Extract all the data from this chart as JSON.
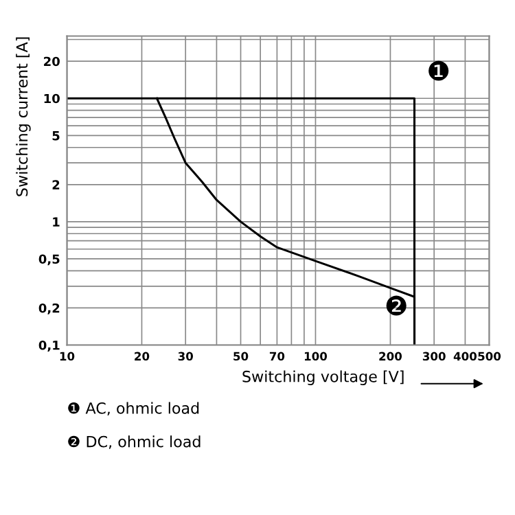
{
  "chart_data": {
    "type": "line",
    "xlabel": "Switching voltage [V]",
    "ylabel": "Switching current [A]",
    "log": "xy",
    "grid": true,
    "marker": "none",
    "line_style": "solid",
    "xlim": [
      10,
      500
    ],
    "ylim": [
      0.1,
      32
    ],
    "xticks": [
      10,
      20,
      30,
      50,
      70,
      100,
      200,
      300,
      400,
      500
    ],
    "yticks": [
      {
        "value": 0.1,
        "label": "0,1"
      },
      {
        "value": 0.2,
        "label": "0,2"
      },
      {
        "value": 0.5,
        "label": "0,5"
      },
      1,
      2,
      5,
      10,
      20
    ],
    "series": [
      {
        "color": "#000000",
        "x": [
          10,
          250,
          250
        ],
        "values": [
          10,
          10,
          0.1
        ]
      },
      {
        "color": "#000000",
        "x": [
          23,
          25,
          27,
          30,
          35,
          40,
          50,
          60,
          70,
          100,
          150,
          200,
          250,
          250
        ],
        "values": [
          10,
          6.9,
          4.8,
          3.0,
          2.1,
          1.5,
          1.0,
          0.76,
          0.62,
          0.48,
          0.36,
          0.29,
          0.246,
          0.1
        ]
      }
    ],
    "annotations": [
      "❶",
      "❷",
      "❶ AC, ohmic load",
      "❷ DC, ohmic load"
    ]
  }
}
